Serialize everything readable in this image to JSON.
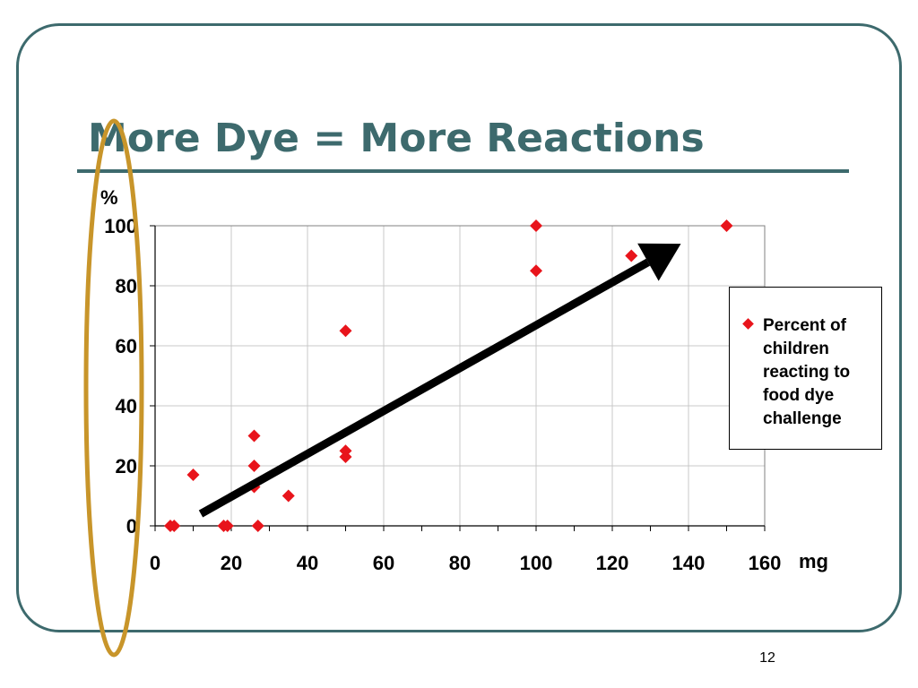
{
  "slide": {
    "title": "More Dye = More Reactions",
    "page_number": "12"
  },
  "colors": {
    "accent": "#3d6a6d",
    "marker": "#e8141b",
    "highlight_ellipse": "#c8952a",
    "arrow": "#000000"
  },
  "chart_data": {
    "type": "scatter",
    "title": "",
    "ylabel": "%",
    "xlabel": "mg",
    "xlim": [
      0,
      160
    ],
    "ylim": [
      0,
      100
    ],
    "x_ticks": [
      0,
      20,
      40,
      60,
      80,
      100,
      120,
      140,
      160
    ],
    "y_ticks": [
      0,
      20,
      40,
      60,
      80,
      100
    ],
    "grid": true,
    "legend_position": "right",
    "series": [
      {
        "name": "Percent of children reacting to food dye challenge",
        "marker": "diamond",
        "color": "#e8141b",
        "points": [
          {
            "x": 4,
            "y": 0
          },
          {
            "x": 5,
            "y": 0
          },
          {
            "x": 18,
            "y": 0
          },
          {
            "x": 19,
            "y": 0
          },
          {
            "x": 27,
            "y": 0
          },
          {
            "x": 10,
            "y": 17
          },
          {
            "x": 26,
            "y": 13
          },
          {
            "x": 26,
            "y": 20
          },
          {
            "x": 26,
            "y": 30
          },
          {
            "x": 35,
            "y": 10
          },
          {
            "x": 50,
            "y": 23
          },
          {
            "x": 50,
            "y": 25
          },
          {
            "x": 50,
            "y": 65
          },
          {
            "x": 100,
            "y": 85
          },
          {
            "x": 100,
            "y": 100
          },
          {
            "x": 125,
            "y": 90
          },
          {
            "x": 150,
            "y": 100
          }
        ]
      }
    ],
    "annotations": [
      {
        "type": "trend-arrow",
        "from": {
          "x": 12,
          "y": 4
        },
        "to": {
          "x": 138,
          "y": 94
        }
      },
      {
        "type": "highlight-ellipse",
        "target": "y-axis"
      }
    ]
  }
}
